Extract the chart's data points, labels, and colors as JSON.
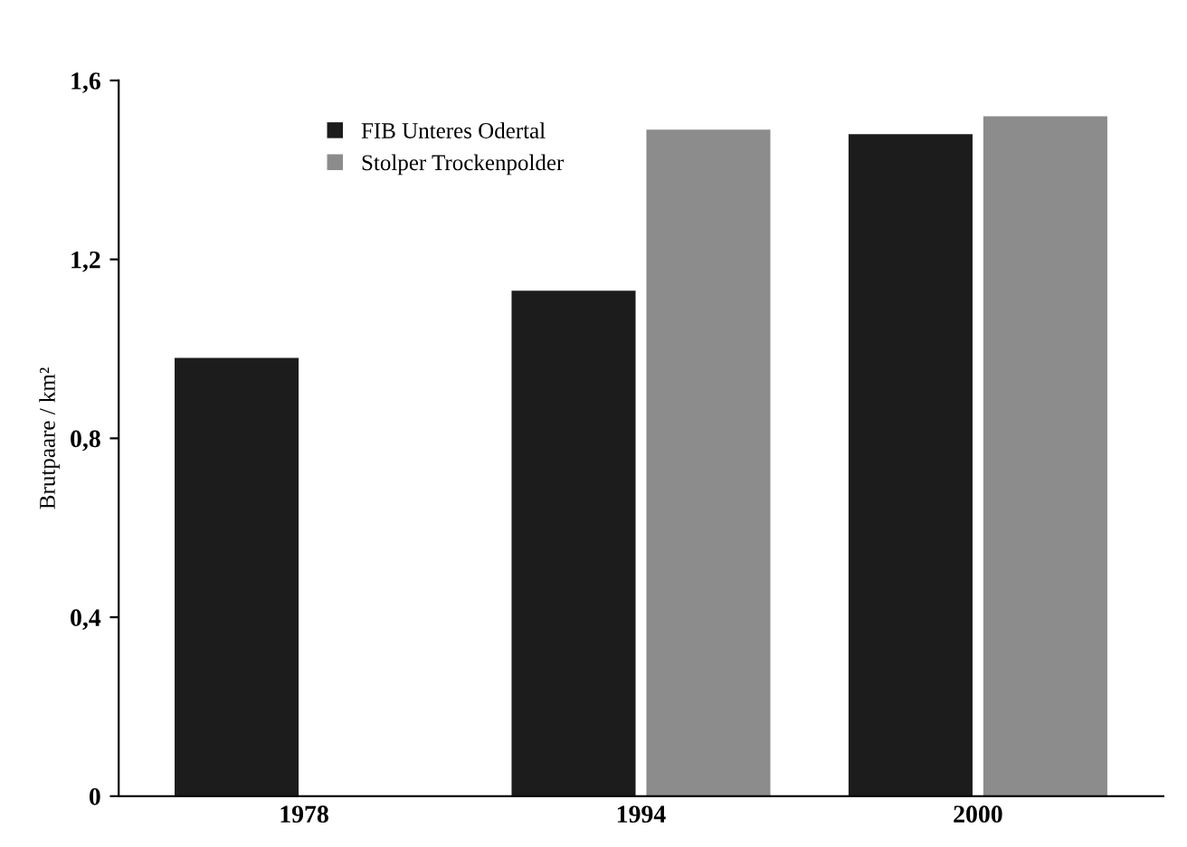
{
  "chart_data": {
    "type": "bar",
    "ylabel": "Brutpaare / km²",
    "categories": [
      "1978",
      "1994",
      "2000"
    ],
    "series": [
      {
        "name": "FIB Unteres Odertal",
        "color": "#1c1c1c",
        "values": [
          0.98,
          1.13,
          1.48
        ]
      },
      {
        "name": "Stolper Trockenpolder",
        "color": "#8c8c8c",
        "values": [
          null,
          1.49,
          1.52
        ]
      }
    ],
    "ylim": [
      0,
      1.6
    ],
    "yticks": [
      {
        "value": 0,
        "label": "0"
      },
      {
        "value": 0.4,
        "label": "0,4"
      },
      {
        "value": 0.8,
        "label": "0,8"
      },
      {
        "value": 1.2,
        "label": "1,2"
      },
      {
        "value": 1.6,
        "label": "1,6"
      }
    ],
    "grid": false,
    "legend": "top left"
  }
}
